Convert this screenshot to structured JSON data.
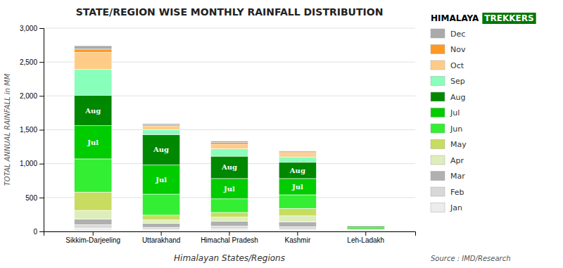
{
  "chart_data": {
    "type": "bar",
    "stacked": true,
    "title": "STATE/REGION WISE MONTHLY RAINFALL DISTRIBUTION",
    "xlabel": "Himalayan States/Regions",
    "ylabel": "TOTAL ANNUAL RAINFALL in MM",
    "source": "Source : IMD/Research",
    "categories": [
      "Sikkim-Darjeeling",
      "Uttarakhand",
      "Himachal Pradesh",
      "Kashmir",
      "Leh-Ladakh"
    ],
    "series": [
      {
        "name": "Jan",
        "color": "#ececec",
        "values": [
          50,
          30,
          40,
          30,
          5
        ]
      },
      {
        "name": "Feb",
        "color": "#d8d8d8",
        "values": [
          50,
          30,
          40,
          40,
          5
        ]
      },
      {
        "name": "Mar",
        "color": "#b0b0b0",
        "values": [
          80,
          60,
          70,
          70,
          5
        ]
      },
      {
        "name": "Apr",
        "color": "#ddeebb",
        "values": [
          130,
          50,
          60,
          90,
          5
        ]
      },
      {
        "name": "May",
        "color": "#c8dc60",
        "values": [
          270,
          70,
          70,
          110,
          5
        ]
      },
      {
        "name": "Jun",
        "color": "#33ee33",
        "values": [
          490,
          310,
          200,
          200,
          15
        ]
      },
      {
        "name": "Jul",
        "color": "#00cc00",
        "values": [
          490,
          430,
          300,
          240,
          20
        ]
      },
      {
        "name": "Aug",
        "color": "#008800",
        "values": [
          450,
          450,
          330,
          240,
          15
        ]
      },
      {
        "name": "Sep",
        "color": "#88ffbb",
        "values": [
          380,
          70,
          110,
          80,
          5
        ]
      },
      {
        "name": "Oct",
        "color": "#ffcc88",
        "values": [
          250,
          50,
          60,
          50,
          5
        ]
      },
      {
        "name": "Nov",
        "color": "#ff9922",
        "values": [
          50,
          20,
          30,
          20,
          5
        ]
      },
      {
        "name": "Dec",
        "color": "#aaaaaa",
        "values": [
          50,
          20,
          25,
          15,
          5
        ]
      }
    ],
    "ylim": [
      0,
      3000
    ],
    "yticks": [
      0,
      500,
      {
        "value": 1000,
        "label": "1,000"
      },
      {
        "value": 1500,
        "label": "1,500"
      },
      {
        "value": 2000,
        "label": "2,000"
      },
      {
        "value": 2500,
        "label": "2,500"
      },
      {
        "value": 3000,
        "label": "3,000"
      }
    ],
    "grid": true,
    "legend": "right",
    "annotations": [
      {
        "text": "HIMALAYA"
      },
      {
        "text": "TREKKERS"
      },
      {
        "text": "Jul",
        "series": "Jul",
        "category": "Sikkim-Darjeeling"
      },
      {
        "text": "Jul",
        "series": "Jul",
        "category": "Uttarakhand"
      },
      {
        "text": "Jul",
        "series": "Jul",
        "category": "Himachal Pradesh"
      },
      {
        "text": "Jul",
        "series": "Jul",
        "category": "Kashmir"
      },
      {
        "text": "Aug",
        "series": "Aug",
        "category": "Sikkim-Darjeeling"
      },
      {
        "text": "Aug",
        "series": "Aug",
        "category": "Uttarakhand"
      },
      {
        "text": "Aug",
        "series": "Aug",
        "category": "Himachal Pradesh"
      },
      {
        "text": "Aug",
        "series": "Aug",
        "category": "Kashmir"
      }
    ]
  }
}
